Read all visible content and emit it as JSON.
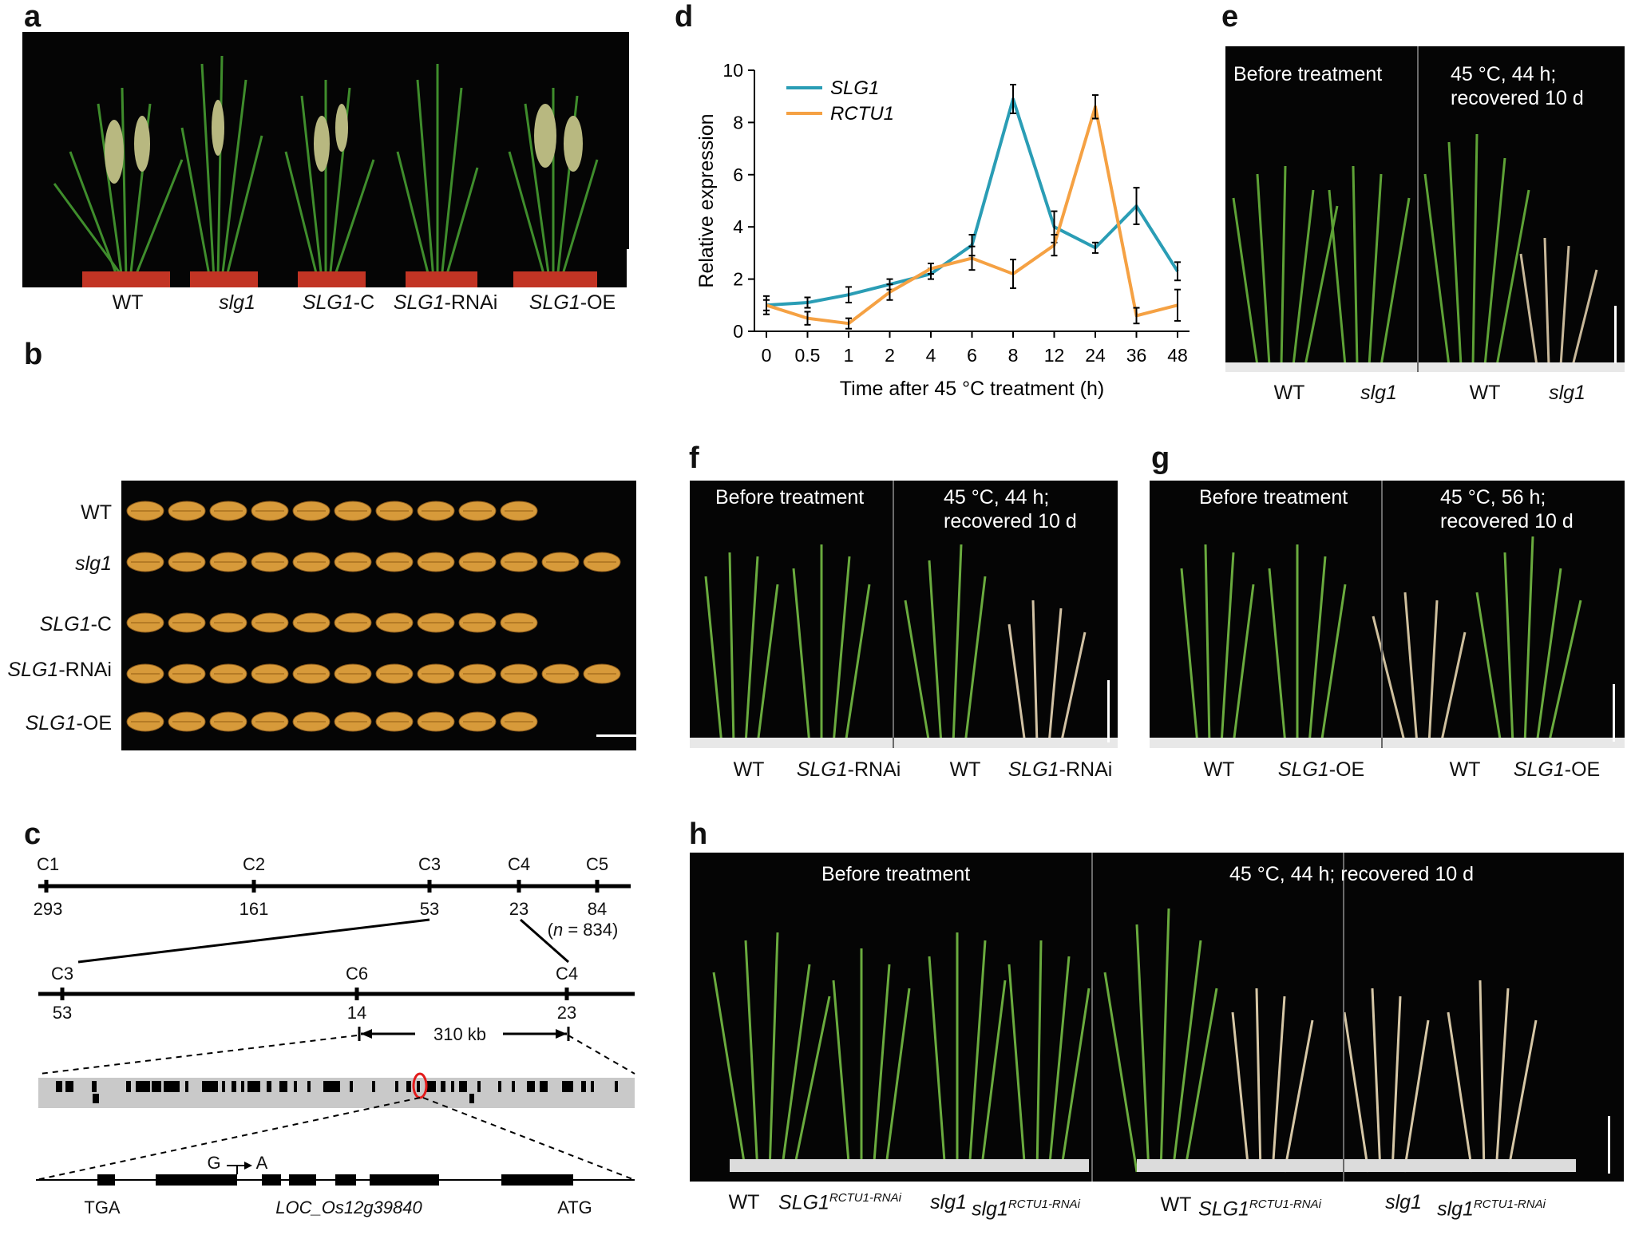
{
  "panels": {
    "a": {
      "letter": "a",
      "labels": [
        "WT",
        "slg1",
        "SLG1-C",
        "SLG1-RNAi",
        "SLG1-OE"
      ]
    },
    "b": {
      "letter": "b",
      "rows": [
        "WT",
        "slg1",
        "SLG1-C",
        "SLG1-RNAi",
        "SLG1-OE"
      ],
      "grain_counts": [
        10,
        12,
        10,
        12,
        10
      ]
    },
    "c": {
      "letter": "c",
      "map1": {
        "markers": [
          "C1",
          "C2",
          "C3",
          "C4",
          "C5"
        ],
        "counts": [
          "293",
          "161",
          "53",
          "23",
          "84"
        ],
        "n_note": "(n = 834)"
      },
      "map2": {
        "markers": [
          "C3",
          "C6",
          "C4"
        ],
        "counts": [
          "53",
          "14",
          "23"
        ],
        "interval": "310 kb"
      },
      "gene": {
        "mutation_from": "G",
        "mutation_to": "A",
        "stop": "TGA",
        "start": "ATG",
        "locus": "LOC_Os12g39840"
      }
    },
    "d": {
      "letter": "d",
      "legend": [
        "SLG1",
        "RCTU1"
      ]
    },
    "e": {
      "letter": "e",
      "before": "Before treatment",
      "after_line1": "45 °C, 44 h;",
      "after_line2": "recovered 10 d",
      "labels": [
        "WT",
        "slg1",
        "WT",
        "slg1"
      ]
    },
    "f": {
      "letter": "f",
      "before": "Before treatment",
      "after_line1": "45 °C, 44 h;",
      "after_line2": "recovered 10 d",
      "labels": [
        "WT",
        "SLG1-RNAi",
        "WT",
        "SLG1-RNAi"
      ]
    },
    "g": {
      "letter": "g",
      "before": "Before treatment",
      "after_line1": "45 °C, 56 h;",
      "after_line2": "recovered 10 d",
      "labels": [
        "WT",
        "SLG1-OE",
        "WT",
        "SLG1-OE"
      ]
    },
    "h": {
      "letter": "h",
      "before": "Before treatment",
      "after": "45 °C, 44 h; recovered 10 d",
      "labels": [
        "WT",
        "SLG1",
        "RCTU1-RNAi",
        "slg1",
        "slg1",
        "RCTU1-RNAi",
        "WT",
        "SLG1",
        "RCTU1-RNAi",
        "slg1",
        "slg1",
        "RCTU1-RNAi"
      ]
    }
  },
  "chart_data": {
    "type": "line",
    "categories": [
      "0",
      "0.5",
      "1",
      "2",
      "4",
      "6",
      "8",
      "12",
      "24",
      "36",
      "48"
    ],
    "xlabel": "Time after 45 °C treatment (h)",
    "ylabel": "Relative expression",
    "ylim": [
      0,
      10
    ],
    "yticks": [
      "0",
      "2",
      "4",
      "6",
      "8",
      "10"
    ],
    "legend_position": "top-left",
    "series": [
      {
        "name": "SLG1",
        "color": "#2a9db5",
        "values": [
          1.0,
          1.1,
          1.4,
          1.8,
          2.2,
          3.3,
          8.9,
          4.0,
          3.2,
          4.8,
          2.3
        ],
        "errors": [
          0.2,
          0.2,
          0.3,
          0.2,
          0.2,
          0.4,
          0.55,
          0.6,
          0.2,
          0.7,
          0.35
        ]
      },
      {
        "name": "RCTU1",
        "color": "#f5a143",
        "values": [
          1.0,
          0.5,
          0.3,
          1.5,
          2.4,
          2.8,
          2.2,
          3.3,
          8.6,
          0.6,
          1.0
        ],
        "errors": [
          0.35,
          0.25,
          0.2,
          0.3,
          0.2,
          0.45,
          0.55,
          0.4,
          0.45,
          0.3,
          0.6
        ]
      }
    ]
  }
}
